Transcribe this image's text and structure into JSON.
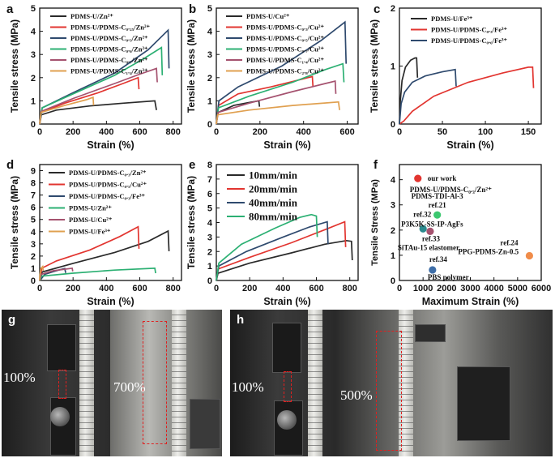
{
  "colors": {
    "black": "#2a2a2a",
    "red": "#e23530",
    "navy": "#2f4a6e",
    "green": "#2cb073",
    "mauve": "#a5526f",
    "orange": "#e0a050",
    "teal": "#2b8a8e",
    "lime": "#3cc870",
    "blue_dot": "#3e6ea8",
    "orange_dot": "#f08c4a"
  },
  "chart_data": [
    {
      "panel": "a",
      "type": "line",
      "xlabel": "Strain (%)",
      "ylabel": "Tensile stress (MPa)",
      "xlim": [
        0,
        850
      ],
      "ylim": [
        0,
        5
      ],
      "xticks": [
        0,
        200,
        400,
        600,
        800
      ],
      "yticks": [
        0,
        1,
        2,
        3,
        4,
        5
      ],
      "series": [
        {
          "name": "PDMS-U/Zn²⁺",
          "color": "#2a2a2a",
          "points": [
            [
              0,
              0
            ],
            [
              10,
              0.4
            ],
            [
              100,
              0.6
            ],
            [
              300,
              0.78
            ],
            [
              500,
              0.9
            ],
            [
              690,
              1.0
            ],
            [
              700,
              0.6
            ]
          ]
        },
        {
          "name": "PDMS-U/PDMS-C₀.₂₅/Zn²⁺",
          "color": "#e23530",
          "points": [
            [
              0,
              0
            ],
            [
              10,
              0.5
            ],
            [
              150,
              0.9
            ],
            [
              350,
              1.35
            ],
            [
              500,
              1.75
            ],
            [
              590,
              2.0
            ],
            [
              595,
              1.5
            ]
          ]
        },
        {
          "name": "PDMS-U/PDMS-C₀.₃/Zn²⁺",
          "color": "#2f4a6e",
          "points": [
            [
              0,
              0
            ],
            [
              15,
              0.7
            ],
            [
              200,
              1.35
            ],
            [
              450,
              2.2
            ],
            [
              650,
              3.2
            ],
            [
              770,
              4.05
            ],
            [
              775,
              2.4
            ]
          ]
        },
        {
          "name": "PDMS-U/PDMS-C₀.₆/Zn²⁺",
          "color": "#2cb073",
          "points": [
            [
              0,
              0
            ],
            [
              15,
              0.7
            ],
            [
              200,
              1.3
            ],
            [
              450,
              2.1
            ],
            [
              620,
              2.8
            ],
            [
              730,
              3.3
            ],
            [
              735,
              2.1
            ]
          ]
        },
        {
          "name": "PDMS-U/PDMS-C₀.₇/Zn²⁺",
          "color": "#a5526f",
          "points": [
            [
              0,
              0
            ],
            [
              10,
              0.55
            ],
            [
              200,
              1.1
            ],
            [
              450,
              1.75
            ],
            [
              600,
              2.15
            ],
            [
              700,
              2.4
            ],
            [
              705,
              1.8
            ]
          ]
        },
        {
          "name": "PDMS-U/PDMS-C₁.₄/Zn²⁺",
          "color": "#e0a050",
          "points": [
            [
              0,
              0
            ],
            [
              8,
              0.5
            ],
            [
              150,
              0.8
            ],
            [
              280,
              1.05
            ],
            [
              320,
              1.15
            ],
            [
              323,
              0.8
            ]
          ]
        }
      ]
    },
    {
      "panel": "b",
      "type": "line",
      "xlabel": "Strain (%)",
      "ylabel": "Tensile stress (MPa)",
      "xlim": [
        0,
        650
      ],
      "ylim": [
        0,
        5
      ],
      "xticks": [
        0,
        200,
        400,
        600
      ],
      "yticks": [
        0,
        1,
        2,
        3,
        4,
        5
      ],
      "series": [
        {
          "name": "PDMS-U/Cu²⁺",
          "color": "#2a2a2a",
          "points": [
            [
              0,
              0
            ],
            [
              8,
              0.5
            ],
            [
              80,
              0.8
            ],
            [
              150,
              0.93
            ],
            [
              195,
              1.0
            ],
            [
              198,
              0.75
            ]
          ]
        },
        {
          "name": "PDMS-U/PDMS-C₀.₃/Cu²⁺",
          "color": "#e23530",
          "points": [
            [
              0,
              0
            ],
            [
              10,
              0.8
            ],
            [
              100,
              1.3
            ],
            [
              250,
              1.6
            ],
            [
              400,
              1.95
            ],
            [
              440,
              2.05
            ],
            [
              443,
              1.6
            ]
          ]
        },
        {
          "name": "PDMS-U/PDMS-C₀.₅/Cu²⁺",
          "color": "#2f4a6e",
          "points": [
            [
              0,
              0
            ],
            [
              12,
              1.0
            ],
            [
              100,
              1.6
            ],
            [
              300,
              2.5
            ],
            [
              480,
              3.6
            ],
            [
              590,
              4.4
            ],
            [
              595,
              2.6
            ]
          ]
        },
        {
          "name": "PDMS-U/PDMS-C₀.₇/Cu²⁺",
          "color": "#2cb073",
          "points": [
            [
              0,
              0
            ],
            [
              10,
              0.7
            ],
            [
              150,
              1.2
            ],
            [
              350,
              1.8
            ],
            [
              500,
              2.35
            ],
            [
              580,
              2.6
            ],
            [
              585,
              1.8
            ]
          ]
        },
        {
          "name": "PDMS-U/PDMS-C₁.₄/Cu²⁺",
          "color": "#a5526f",
          "points": [
            [
              0,
              0
            ],
            [
              8,
              0.5
            ],
            [
              150,
              0.9
            ],
            [
              350,
              1.4
            ],
            [
              500,
              1.75
            ],
            [
              545,
              1.85
            ],
            [
              548,
              1.3
            ]
          ]
        },
        {
          "name": "PDMS-U/PDMS-C₂.₈/Cu²⁺",
          "color": "#e0a050",
          "points": [
            [
              0,
              0
            ],
            [
              6,
              0.4
            ],
            [
              150,
              0.6
            ],
            [
              350,
              0.8
            ],
            [
              560,
              0.95
            ],
            [
              565,
              0.6
            ]
          ]
        }
      ]
    },
    {
      "panel": "c",
      "type": "line",
      "xlabel": "Strain (%)",
      "ylabel": "Tensile stress (MPa)",
      "xlim": [
        0,
        165
      ],
      "ylim": [
        0,
        2
      ],
      "xticks": [
        0,
        50,
        100,
        150
      ],
      "yticks": [
        0,
        1,
        2
      ],
      "series": [
        {
          "name": "PDMS-U/Fe³⁺",
          "color": "#2a2a2a",
          "points": [
            [
              0,
              0
            ],
            [
              1,
              0.4
            ],
            [
              3,
              0.75
            ],
            [
              7,
              0.98
            ],
            [
              13,
              1.1
            ],
            [
              18,
              1.14
            ],
            [
              20,
              1.14
            ],
            [
              21,
              0.8
            ]
          ]
        },
        {
          "name": "PDMS-U/PDMS-C₀.₃/Fe³⁺",
          "color": "#e23530",
          "points": [
            [
              0,
              0
            ],
            [
              5,
              0.05
            ],
            [
              15,
              0.22
            ],
            [
              40,
              0.48
            ],
            [
              80,
              0.72
            ],
            [
              120,
              0.88
            ],
            [
              150,
              0.98
            ],
            [
              155,
              0.98
            ],
            [
              156,
              0.62
            ]
          ]
        },
        {
          "name": "PDMS-U/PDMS-C₀.₆/Fe³⁺",
          "color": "#2f4a6e",
          "points": [
            [
              0,
              0
            ],
            [
              2,
              0.35
            ],
            [
              6,
              0.55
            ],
            [
              15,
              0.72
            ],
            [
              30,
              0.83
            ],
            [
              50,
              0.9
            ],
            [
              65,
              0.94
            ],
            [
              66,
              0.65
            ]
          ]
        }
      ]
    },
    {
      "panel": "d",
      "type": "line",
      "xlabel": "Strain (%)",
      "ylabel": "Tensile stress (MPa)",
      "xlim": [
        0,
        850
      ],
      "ylim": [
        0,
        9.5
      ],
      "xticks": [
        0,
        200,
        400,
        600,
        800
      ],
      "yticks": [
        0,
        1,
        2,
        3,
        4,
        5,
        6,
        7,
        8,
        9
      ],
      "series": [
        {
          "name": "PDMS-U/PDMS-C₀.₃/Zn²⁺",
          "color": "#2a2a2a",
          "points": [
            [
              0,
              0
            ],
            [
              15,
              0.7
            ],
            [
              200,
              1.4
            ],
            [
              450,
              2.3
            ],
            [
              650,
              3.2
            ],
            [
              770,
              4.05
            ],
            [
              775,
              2.4
            ]
          ]
        },
        {
          "name": "PDMS-U/PDMS-C₀.₅/Cu²⁺",
          "color": "#e23530",
          "points": [
            [
              0,
              0
            ],
            [
              12,
              1.0
            ],
            [
              100,
              1.6
            ],
            [
              300,
              2.5
            ],
            [
              480,
              3.6
            ],
            [
              590,
              4.4
            ],
            [
              595,
              2.6
            ]
          ]
        },
        {
          "name": "PDMS-U/PDMS-C₀.₃/Fe³⁺",
          "color": "#2f4a6e",
          "points": [
            [
              0,
              0
            ],
            [
              5,
              0.05
            ],
            [
              30,
              0.5
            ],
            [
              80,
              0.72
            ],
            [
              120,
              0.88
            ],
            [
              150,
              0.98
            ],
            [
              156,
              0.62
            ]
          ]
        },
        {
          "name": "PDMS-U/Zn²⁺",
          "color": "#2cb073",
          "points": [
            [
              0,
              0
            ],
            [
              10,
              0.35
            ],
            [
              200,
              0.6
            ],
            [
              450,
              0.85
            ],
            [
              690,
              1.0
            ],
            [
              695,
              0.6
            ]
          ]
        },
        {
          "name": "PDMS-U/Cu²⁺",
          "color": "#a5526f",
          "points": [
            [
              0,
              0
            ],
            [
              8,
              0.5
            ],
            [
              80,
              0.8
            ],
            [
              195,
              1.0
            ],
            [
              198,
              0.75
            ]
          ]
        },
        {
          "name": "PDMS-U/Fe³⁺",
          "color": "#e0a050",
          "points": [
            [
              0,
              0
            ],
            [
              1,
              0.4
            ],
            [
              7,
              0.98
            ],
            [
              18,
              1.14
            ],
            [
              21,
              0.8
            ]
          ]
        }
      ]
    },
    {
      "panel": "e",
      "type": "line",
      "xlabel": "Strain (%)",
      "ylabel": "Tensile stress (MPa)",
      "xlim": [
        0,
        850
      ],
      "ylim": [
        0,
        8
      ],
      "xticks": [
        0,
        200,
        400,
        600,
        800
      ],
      "yticks": [
        0,
        1,
        2,
        3,
        4,
        5,
        6,
        7,
        8
      ],
      "series": [
        {
          "name": "10mm/min",
          "color": "#2a2a2a",
          "points": [
            [
              0,
              0
            ],
            [
              10,
              0.5
            ],
            [
              200,
              1.2
            ],
            [
              450,
              1.9
            ],
            [
              650,
              2.5
            ],
            [
              780,
              2.75
            ],
            [
              810,
              2.7
            ],
            [
              815,
              1.4
            ]
          ]
        },
        {
          "name": "20mm/min",
          "color": "#e23530",
          "points": [
            [
              0,
              0
            ],
            [
              12,
              0.8
            ],
            [
              200,
              1.6
            ],
            [
              450,
              2.6
            ],
            [
              650,
              3.5
            ],
            [
              770,
              4.05
            ],
            [
              775,
              2.3
            ]
          ]
        },
        {
          "name": "40mm/min",
          "color": "#2f4a6e",
          "points": [
            [
              0,
              0
            ],
            [
              15,
              1.0
            ],
            [
              180,
              2.0
            ],
            [
              400,
              3.0
            ],
            [
              560,
              3.7
            ],
            [
              665,
              4.05
            ],
            [
              670,
              2.5
            ]
          ]
        },
        {
          "name": "80mm/min",
          "color": "#2cb073",
          "points": [
            [
              0,
              0
            ],
            [
              15,
              1.2
            ],
            [
              150,
              2.5
            ],
            [
              350,
              3.6
            ],
            [
              500,
              4.35
            ],
            [
              570,
              4.55
            ],
            [
              600,
              4.45
            ],
            [
              605,
              3.0
            ]
          ]
        }
      ]
    },
    {
      "panel": "f",
      "type": "scatter",
      "xlabel": "Maximum Strain (%)",
      "ylabel": "Tensile Stress (MPa)",
      "xlim": [
        0,
        6000
      ],
      "ylim": [
        0,
        4.6
      ],
      "xticks": [
        0,
        1000,
        2000,
        3000,
        4000,
        5000,
        6000
      ],
      "yticks": [
        0,
        1,
        2,
        3,
        4
      ],
      "points": [
        {
          "label": "our work",
          "sublabel": "PDMS-U/PDMS-C₀.₃/Zn²⁺",
          "x": 780,
          "y": 4.05,
          "color": "#e23530"
        },
        {
          "label": "ref.21",
          "sublabel": "PDMS-TDI-Al-3",
          "x": 1600,
          "y": 2.6,
          "color": "#3cc870"
        },
        {
          "label": "ref.32",
          "sublabel": "P3K5K-SS-IP-AgFs",
          "x": 1000,
          "y": 2.05,
          "color": "#2b8a8e"
        },
        {
          "label": "ref.33",
          "sublabel": "SiTAu-15 elastomer",
          "x": 1300,
          "y": 1.95,
          "color": "#a5526f"
        },
        {
          "label": "ref.24",
          "sublabel": "PPG-PDMS-Zn-0.5",
          "x": 5500,
          "y": 0.98,
          "color": "#f08c4a"
        },
        {
          "label": "ref.34",
          "sublabel": "PBS polymer",
          "x": 1400,
          "y": 0.42,
          "color": "#3e6ea8"
        }
      ]
    }
  ],
  "panels": {
    "a": "a",
    "b": "b",
    "c": "c",
    "d": "d",
    "e": "e",
    "f": "f",
    "g": "g",
    "h": "h"
  },
  "photos": {
    "g_left_pct": "100%",
    "g_right_pct": "700%",
    "h_left_pct": "100%",
    "h_right_pct": "500%"
  }
}
